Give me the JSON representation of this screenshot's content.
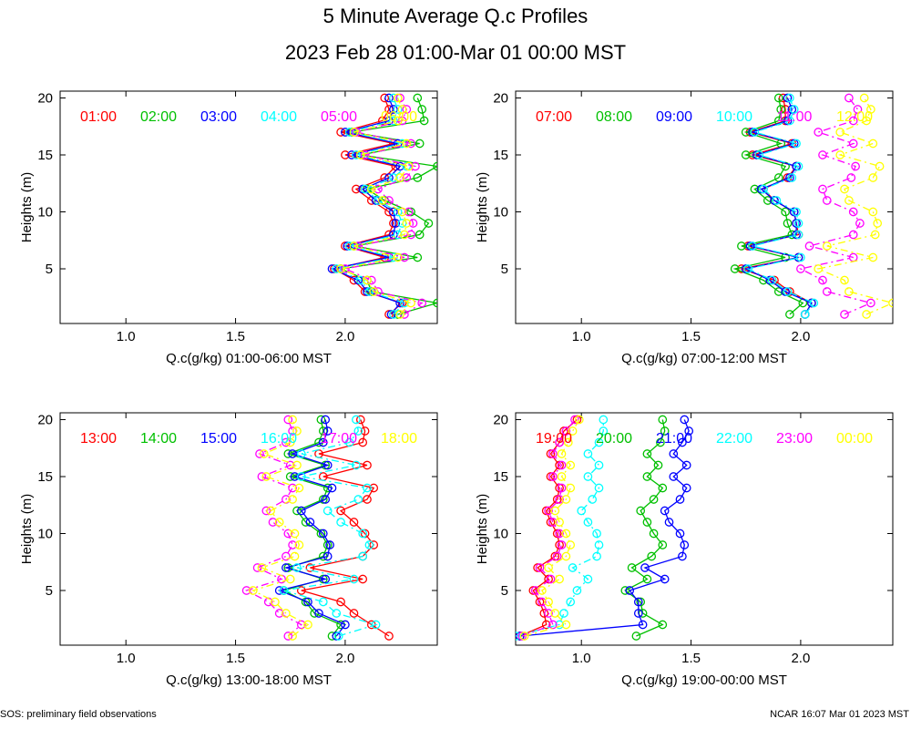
{
  "title": "5 Minute Average Q.c Profiles",
  "subtitle": "2023 Feb 28 01:00-Mar 01 00:00 MST",
  "footer_left": "SOS: preliminary field observations",
  "footer_right": "NCAR 16:07 Mar 01 2023 MST",
  "series_colors": [
    "#ff0000",
    "#00c000",
    "#0000ff",
    "#00ffff",
    "#ff00ff",
    "#ffff00"
  ],
  "chart_data": [
    {
      "type": "line",
      "ylabel": "Heights (m)",
      "xlabel": "Q.c(g/kg) 01:00-06:00 MST",
      "xlim": [
        0.7,
        2.42
      ],
      "ylim": [
        0.2,
        20.6
      ],
      "xticks": [
        "1.0",
        "1.5",
        "2.0"
      ],
      "yticks": [
        "5",
        "10",
        "15",
        "20"
      ],
      "heights": [
        1,
        2,
        3,
        4,
        5,
        6,
        7,
        8,
        9,
        10,
        11,
        12,
        13,
        14,
        15,
        16,
        17,
        18,
        19,
        20
      ],
      "series": [
        {
          "name": "01:00",
          "values": [
            2.2,
            2.26,
            2.09,
            2.04,
            1.95,
            2.18,
            2.0,
            2.2,
            2.22,
            2.2,
            2.12,
            2.05,
            2.18,
            2.23,
            2.0,
            2.22,
            1.98,
            2.17,
            2.2,
            2.18
          ]
        },
        {
          "name": "02:00",
          "values": [
            2.24,
            2.42,
            2.12,
            2.1,
            1.98,
            2.33,
            2.04,
            2.34,
            2.38,
            2.3,
            2.18,
            2.1,
            2.33,
            2.42,
            2.07,
            2.34,
            2.03,
            2.36,
            2.35,
            2.33
          ]
        },
        {
          "name": "03:00",
          "values": [
            2.21,
            2.25,
            2.1,
            2.06,
            1.94,
            2.2,
            2.01,
            2.22,
            2.23,
            2.22,
            2.14,
            2.08,
            2.2,
            2.25,
            2.03,
            2.24,
            2.0,
            2.2,
            2.22,
            2.2
          ]
        },
        {
          "name": "04:00",
          "values": [
            2.22,
            2.27,
            2.11,
            2.07,
            1.96,
            2.22,
            2.02,
            2.24,
            2.26,
            2.24,
            2.15,
            2.09,
            2.22,
            2.28,
            2.05,
            2.26,
            2.02,
            2.22,
            2.24,
            2.22
          ]
        },
        {
          "name": "05:00",
          "values": [
            2.27,
            2.35,
            2.15,
            2.12,
            2.0,
            2.27,
            2.06,
            2.3,
            2.31,
            2.29,
            2.2,
            2.15,
            2.28,
            2.32,
            2.09,
            2.3,
            2.05,
            2.26,
            2.28,
            2.25
          ]
        },
        {
          "name": "06:00",
          "values": [
            2.25,
            2.3,
            2.13,
            2.1,
            1.98,
            2.24,
            2.04,
            2.27,
            2.28,
            2.26,
            2.17,
            2.12,
            2.25,
            2.29,
            2.07,
            2.28,
            2.04,
            2.24,
            2.26,
            2.24
          ]
        }
      ]
    },
    {
      "type": "line",
      "ylabel": "Heights (m)",
      "xlabel": "Q.c(g/kg) 07:00-12:00 MST",
      "xlim": [
        0.7,
        2.42
      ],
      "ylim": [
        0.2,
        20.6
      ],
      "xticks": [
        "1.0",
        "1.5",
        "2.0"
      ],
      "yticks": [
        "5",
        "10",
        "15",
        "20"
      ],
      "heights": [
        1,
        2,
        3,
        4,
        5,
        6,
        7,
        8,
        9,
        10,
        11,
        12,
        13,
        14,
        15,
        16,
        17,
        18,
        19,
        20
      ],
      "series": [
        {
          "name": "07:00",
          "values": [
            2.02,
            2.05,
            1.95,
            1.88,
            1.73,
            1.99,
            1.76,
            1.99,
            1.98,
            1.97,
            1.88,
            1.83,
            1.94,
            1.98,
            1.78,
            1.96,
            1.77,
            1.93,
            1.93,
            1.92
          ]
        },
        {
          "name": "08:00",
          "values": [
            1.95,
            2.01,
            1.9,
            1.83,
            1.7,
            1.93,
            1.73,
            1.96,
            1.94,
            1.93,
            1.85,
            1.79,
            1.9,
            1.93,
            1.75,
            1.91,
            1.75,
            1.9,
            1.91,
            1.9
          ]
        },
        {
          "name": "09:00",
          "values": [
            2.02,
            2.05,
            1.93,
            1.86,
            1.75,
            1.99,
            1.77,
            1.98,
            1.98,
            1.97,
            1.88,
            1.82,
            1.95,
            1.98,
            1.8,
            1.97,
            1.78,
            1.94,
            1.96,
            1.94
          ]
        },
        {
          "name": "10:00",
          "values": [
            2.02,
            2.06,
            1.94,
            1.87,
            1.76,
            2.0,
            1.78,
            1.99,
            1.99,
            1.98,
            1.89,
            1.83,
            1.96,
            1.99,
            1.81,
            1.98,
            1.79,
            1.95,
            1.97,
            1.95
          ]
        },
        {
          "name": "11:00",
          "values": [
            2.2,
            2.32,
            2.12,
            2.1,
            2.0,
            2.24,
            2.04,
            2.24,
            2.27,
            2.24,
            2.12,
            2.1,
            2.23,
            2.25,
            2.1,
            2.24,
            2.08,
            2.24,
            2.26,
            2.22
          ]
        },
        {
          "name": "12:00",
          "values": [
            2.3,
            2.42,
            2.22,
            2.2,
            2.08,
            2.33,
            2.12,
            2.34,
            2.35,
            2.33,
            2.22,
            2.2,
            2.33,
            2.36,
            2.18,
            2.33,
            2.18,
            2.3,
            2.32,
            2.29
          ]
        }
      ]
    },
    {
      "type": "line",
      "ylabel": "Heights (m)",
      "xlabel": "Q.c(g/kg) 13:00-18:00 MST",
      "xlim": [
        0.7,
        2.42
      ],
      "ylim": [
        0.2,
        20.6
      ],
      "xticks": [
        "1.0",
        "1.5",
        "2.0"
      ],
      "yticks": [
        "5",
        "10",
        "15",
        "20"
      ],
      "heights": [
        1,
        2,
        3,
        4,
        5,
        6,
        7,
        8,
        9,
        10,
        11,
        12,
        13,
        14,
        15,
        16,
        17,
        18,
        19,
        20
      ],
      "series": [
        {
          "name": "13:00",
          "values": [
            2.2,
            2.12,
            2.04,
            1.98,
            1.8,
            2.08,
            1.84,
            2.08,
            2.13,
            2.09,
            2.04,
            1.98,
            2.1,
            2.13,
            1.9,
            2.1,
            1.88,
            2.08,
            2.09,
            2.07
          ]
        },
        {
          "name": "14:00",
          "values": [
            1.94,
            1.98,
            1.86,
            1.82,
            1.72,
            1.9,
            1.74,
            1.9,
            1.92,
            1.89,
            1.82,
            1.78,
            1.9,
            1.92,
            1.75,
            1.91,
            1.74,
            1.88,
            1.9,
            1.89
          ]
        },
        {
          "name": "15:00",
          "values": [
            1.96,
            2.0,
            1.88,
            1.83,
            1.7,
            1.91,
            1.73,
            1.92,
            1.93,
            1.9,
            1.84,
            1.8,
            1.91,
            1.94,
            1.77,
            1.92,
            1.76,
            1.9,
            1.92,
            1.91
          ]
        },
        {
          "name": "16:00",
          "values": [
            1.97,
            2.14,
            1.96,
            1.9,
            1.72,
            2.04,
            1.78,
            2.08,
            2.11,
            2.08,
            1.98,
            1.92,
            2.06,
            2.1,
            1.8,
            2.05,
            1.8,
            2.02,
            2.06,
            2.05
          ]
        },
        {
          "name": "17:00",
          "values": [
            1.74,
            1.8,
            1.7,
            1.65,
            1.55,
            1.71,
            1.6,
            1.73,
            1.76,
            1.74,
            1.67,
            1.64,
            1.73,
            1.76,
            1.62,
            1.75,
            1.61,
            1.73,
            1.76,
            1.74
          ]
        },
        {
          "name": "18:00",
          "values": [
            1.76,
            1.83,
            1.73,
            1.68,
            1.58,
            1.75,
            1.62,
            1.77,
            1.79,
            1.77,
            1.7,
            1.66,
            1.76,
            1.79,
            1.64,
            1.78,
            1.63,
            1.75,
            1.78,
            1.76
          ]
        }
      ]
    },
    {
      "type": "line",
      "ylabel": "Heights (m)",
      "xlabel": "Q.c(g/kg) 19:00-00:00 MST",
      "xlim": [
        0.7,
        2.42
      ],
      "ylim": [
        0.2,
        20.6
      ],
      "xticks": [
        "1.0",
        "1.5",
        "2.0"
      ],
      "yticks": [
        "5",
        "10",
        "15",
        "20"
      ],
      "heights": [
        1,
        2,
        3,
        4,
        5,
        6,
        7,
        8,
        9,
        10,
        11,
        12,
        13,
        14,
        15,
        16,
        17,
        18,
        19,
        20
      ],
      "series": [
        {
          "name": "19:00",
          "values": [
            0.72,
            0.84,
            0.83,
            0.81,
            0.78,
            0.85,
            0.8,
            0.88,
            0.9,
            0.89,
            0.86,
            0.84,
            0.89,
            0.9,
            0.86,
            0.9,
            0.86,
            0.9,
            0.92,
            0.98
          ]
        },
        {
          "name": "20:00",
          "values": [
            1.25,
            1.37,
            1.28,
            1.27,
            1.2,
            1.3,
            1.23,
            1.32,
            1.37,
            1.33,
            1.3,
            1.27,
            1.33,
            1.37,
            1.3,
            1.35,
            1.3,
            1.36,
            1.38,
            1.37
          ]
        },
        {
          "name": "21:00",
          "values": [
            0.72,
            1.28,
            1.26,
            1.26,
            1.22,
            1.38,
            1.29,
            1.46,
            1.47,
            1.45,
            1.4,
            1.38,
            1.45,
            1.48,
            1.42,
            1.48,
            1.42,
            1.46,
            1.49,
            1.47
          ]
        },
        {
          "name": "22:00",
          "values": [
            0.7,
            0.9,
            0.92,
            0.95,
            0.98,
            1.03,
            0.96,
            1.07,
            1.08,
            1.07,
            1.03,
            1.0,
            1.05,
            1.08,
            1.03,
            1.08,
            1.03,
            1.08,
            1.1,
            1.1
          ]
        },
        {
          "name": "23:00",
          "values": [
            0.73,
            0.87,
            0.85,
            0.82,
            0.79,
            0.86,
            0.81,
            0.89,
            0.91,
            0.9,
            0.87,
            0.85,
            0.9,
            0.91,
            0.87,
            0.91,
            0.87,
            0.9,
            0.93,
            0.97
          ]
        },
        {
          "name": "00:00",
          "values": [
            0.74,
            0.93,
            0.88,
            0.85,
            0.82,
            0.9,
            0.85,
            0.93,
            0.95,
            0.93,
            0.9,
            0.88,
            0.93,
            0.95,
            0.91,
            0.95,
            0.91,
            0.94,
            0.96,
            0.99
          ]
        }
      ]
    }
  ]
}
